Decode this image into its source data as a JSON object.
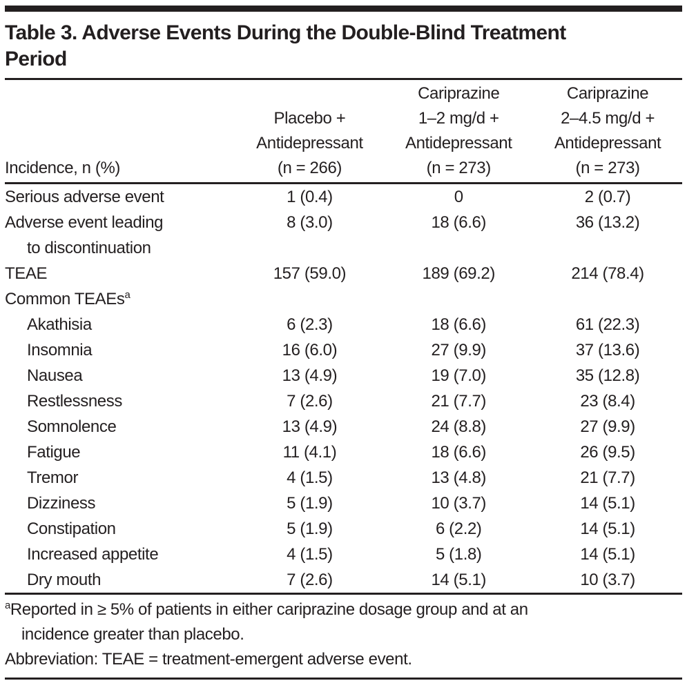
{
  "page": {
    "background_color": "#ffffff",
    "text_color": "#231f20"
  },
  "table": {
    "title_lines": [
      "Table 3. Adverse Events During the Double-Blind Treatment",
      "Period"
    ],
    "header": {
      "row_label_column": "Incidence, n (%)",
      "columns": [
        {
          "lines": [
            "Placebo +",
            "Antidepressant",
            "(n = 266)"
          ]
        },
        {
          "lines": [
            "Cariprazine",
            "1–2 mg/d +",
            "Antidepressant",
            "(n = 273)"
          ]
        },
        {
          "lines": [
            "Cariprazine",
            "2–4.5 mg/d +",
            "Antidepressant",
            "(n = 273)"
          ]
        }
      ]
    },
    "rows": [
      {
        "label": "Serious adverse event",
        "indent": false,
        "values": [
          "1 (0.4)",
          "0",
          "2 (0.7)"
        ]
      },
      {
        "label": "Adverse event leading",
        "label_line2": "to discontinuation",
        "indent": false,
        "values": [
          "8 (3.0)",
          "18 (6.6)",
          "36 (13.2)"
        ]
      },
      {
        "label": "TEAE",
        "indent": false,
        "values": [
          "157 (59.0)",
          "189 (69.2)",
          "214 (78.4)"
        ]
      },
      {
        "label": "Common TEAEs",
        "superscript": "a",
        "indent": false,
        "values": [
          "",
          "",
          ""
        ]
      },
      {
        "label": "Akathisia",
        "indent": true,
        "values": [
          "6 (2.3)",
          "18 (6.6)",
          "61 (22.3)"
        ]
      },
      {
        "label": "Insomnia",
        "indent": true,
        "values": [
          "16 (6.0)",
          "27 (9.9)",
          "37 (13.6)"
        ]
      },
      {
        "label": "Nausea",
        "indent": true,
        "values": [
          "13 (4.9)",
          "19 (7.0)",
          "35 (12.8)"
        ]
      },
      {
        "label": "Restlessness",
        "indent": true,
        "values": [
          "7 (2.6)",
          "21 (7.7)",
          "23 (8.4)"
        ]
      },
      {
        "label": "Somnolence",
        "indent": true,
        "values": [
          "13 (4.9)",
          "24 (8.8)",
          "27 (9.9)"
        ]
      },
      {
        "label": "Fatigue",
        "indent": true,
        "values": [
          "11 (4.1)",
          "18 (6.6)",
          "26 (9.5)"
        ]
      },
      {
        "label": "Tremor",
        "indent": true,
        "values": [
          "4 (1.5)",
          "13 (4.8)",
          "21 (7.7)"
        ]
      },
      {
        "label": "Dizziness",
        "indent": true,
        "values": [
          "5 (1.9)",
          "10 (3.7)",
          "14 (5.1)"
        ]
      },
      {
        "label": "Constipation",
        "indent": true,
        "values": [
          "5 (1.9)",
          "6 (2.2)",
          "14 (5.1)"
        ]
      },
      {
        "label": "Increased appetite",
        "indent": true,
        "values": [
          "4 (1.5)",
          "5 (1.8)",
          "14 (5.1)"
        ]
      },
      {
        "label": "Dry mouth",
        "indent": true,
        "values": [
          "7 (2.6)",
          "14 (5.1)",
          "10 (3.7)"
        ]
      }
    ],
    "footnotes": [
      {
        "marker": "a",
        "lines": [
          "Reported in ≥ 5% of patients in either cariprazine dosage group and at an",
          "incidence greater than placebo."
        ]
      },
      {
        "marker": "",
        "lines": [
          "Abbreviation: TEAE = treatment-emergent adverse event."
        ]
      }
    ]
  }
}
